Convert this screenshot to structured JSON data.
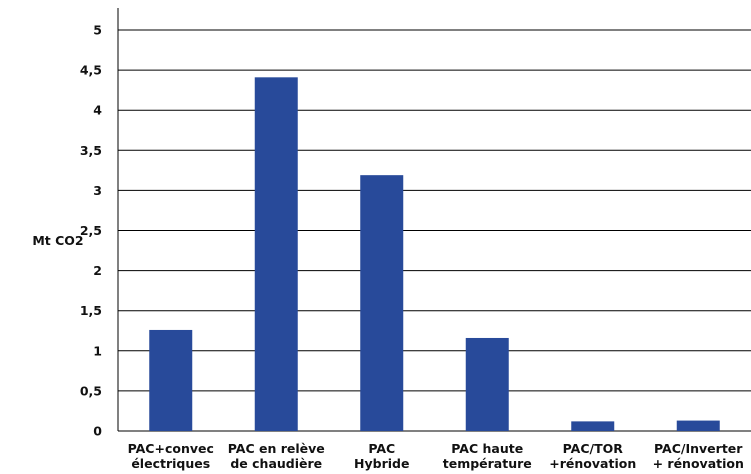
{
  "chart_data": {
    "type": "bar",
    "title": "",
    "xlabel": "",
    "ylabel": "Mt CO2",
    "ylim": [
      0,
      5
    ],
    "yticks": [
      "0",
      "0,5",
      "1",
      "1,5",
      "2",
      "2,5",
      "3",
      "3,5",
      "4",
      "4,5",
      "5"
    ],
    "grid": true,
    "legend": "none",
    "bar_color": "#284a9a",
    "categories": [
      [
        "PAC+convec",
        "électriques"
      ],
      [
        "PAC en relève",
        "de chaudière"
      ],
      [
        "PAC",
        "Hybride"
      ],
      [
        "PAC haute",
        "température"
      ],
      [
        "PAC/TOR",
        "+rénovation"
      ],
      [
        "PAC/Inverter",
        "+ rénovation"
      ]
    ],
    "values": [
      1.26,
      4.41,
      3.19,
      1.16,
      0.12,
      0.13
    ]
  }
}
